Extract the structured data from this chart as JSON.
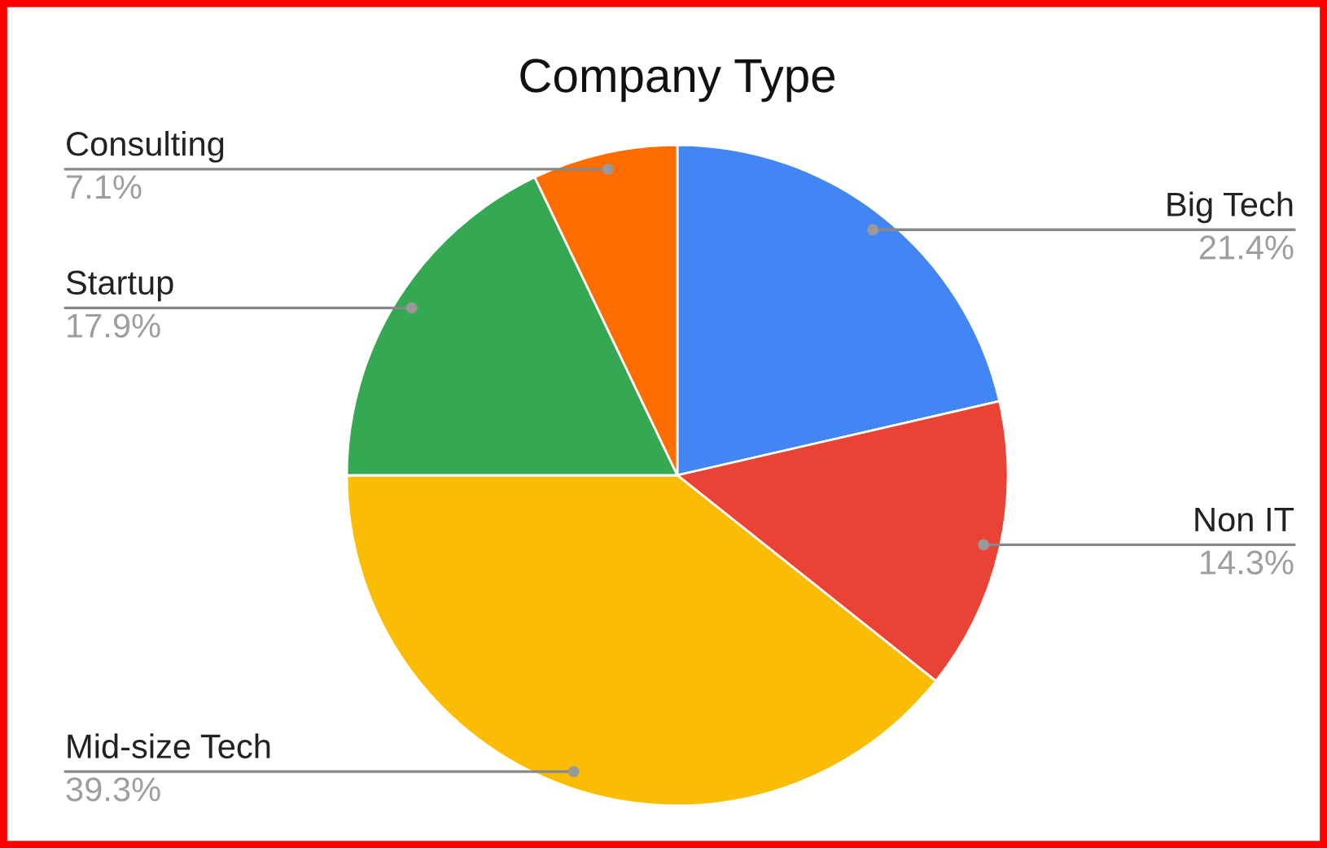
{
  "chart_data": {
    "type": "pie",
    "title": "Company Type",
    "categories": [
      "Big Tech",
      "Non IT",
      "Mid-size Tech",
      "Startup",
      "Consulting"
    ],
    "values": [
      21.4,
      14.3,
      39.3,
      17.9,
      7.1
    ],
    "value_labels": [
      "21.4%",
      "14.3%",
      "39.3%",
      "17.9%",
      "7.1%"
    ],
    "colors": [
      "#4285f4",
      "#ea4335",
      "#fbbc04",
      "#34a853",
      "#ff6d01"
    ],
    "legend": false
  }
}
